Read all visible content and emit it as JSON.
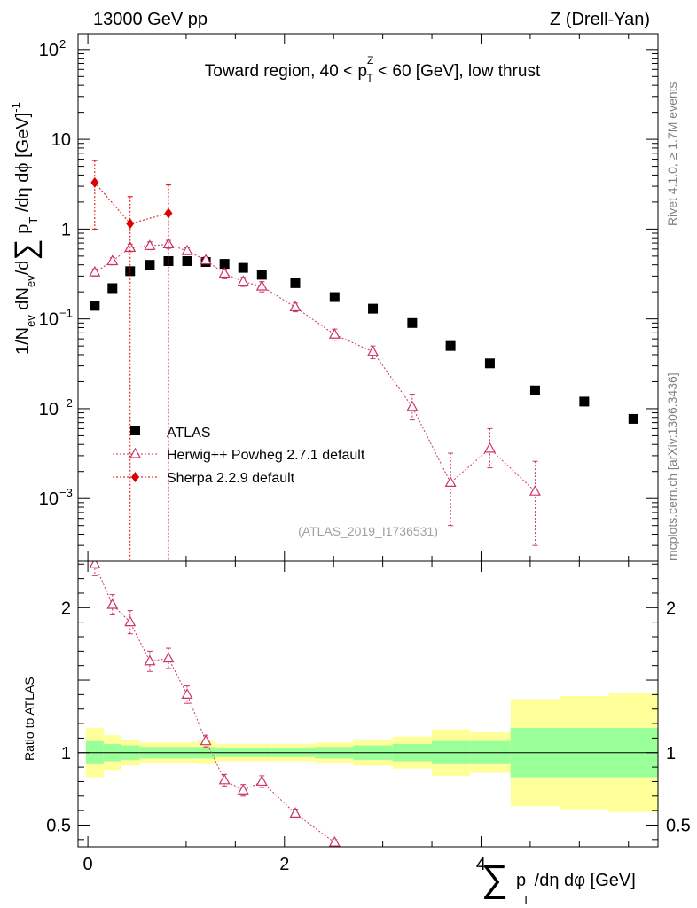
{
  "header": {
    "left": "13000 GeV pp",
    "right": "Z (Drell-Yan)"
  },
  "side_labels": {
    "rivet": "Rivet 4.1.0, ≥ 1.7M events",
    "mcplots": "mcplots.cern.ch [arXiv:1306.3436]"
  },
  "watermark": "(ATLAS_2019_I1736531)",
  "chart_data": [
    {
      "type": "scatter",
      "title": "Toward region, 40 < pTZ < 60 [GeV], low thrust",
      "title_parts": {
        "lead": "Toward region, 40 < p",
        "sup": "Z",
        "sub": "T",
        "tail": " < 60 [GeV], low thrust"
      },
      "ylabel": "1/Nev dNev/d∑pT /dη dφ [GeV]-1",
      "yscale": "log",
      "xlim": [
        -0.1,
        5.8
      ],
      "ylim": [
        0.0002,
        150
      ],
      "yticks": [
        {
          "value": 0.001,
          "base": "10",
          "exp": "−3"
        },
        {
          "value": 0.01,
          "base": "10",
          "exp": "−2"
        },
        {
          "value": 0.1,
          "base": "10",
          "exp": "−1"
        },
        {
          "value": 1,
          "base": "1",
          "exp": ""
        },
        {
          "value": 10,
          "base": "10",
          "exp": ""
        },
        {
          "value": 100,
          "base": "10",
          "exp": "2"
        }
      ],
      "series": [
        {
          "name": "ATLAS",
          "marker": "square",
          "color": "#000000",
          "x": [
            0.07,
            0.25,
            0.43,
            0.63,
            0.82,
            1.01,
            1.2,
            1.39,
            1.58,
            1.77,
            2.11,
            2.51,
            2.9,
            3.3,
            3.69,
            4.09,
            4.55,
            5.05,
            5.55
          ],
          "y": [
            0.14,
            0.22,
            0.34,
            0.4,
            0.44,
            0.44,
            0.43,
            0.41,
            0.37,
            0.31,
            0.25,
            0.175,
            0.13,
            0.09,
            0.05,
            0.032,
            0.016,
            0.012,
            0.0077
          ]
        },
        {
          "name": "Herwig++ Powheg 2.7.1 default",
          "marker": "open-triangle",
          "color": "#cc3366",
          "x": [
            0.07,
            0.25,
            0.43,
            0.63,
            0.82,
            1.01,
            1.2,
            1.39,
            1.58,
            1.77,
            2.11,
            2.51,
            2.9,
            3.3,
            3.69,
            4.09,
            4.55
          ],
          "y": [
            0.33,
            0.44,
            0.62,
            0.65,
            0.68,
            0.57,
            0.45,
            0.32,
            0.26,
            0.23,
            0.135,
            0.067,
            0.043,
            0.0105,
            0.0015,
            0.0036,
            0.0012
          ],
          "err_lo": [
            0.3,
            0.4,
            0.56,
            0.59,
            0.61,
            0.52,
            0.41,
            0.28,
            0.23,
            0.2,
            0.12,
            0.058,
            0.036,
            0.0075,
            0.0005,
            0.0022,
            0.0003
          ],
          "err_hi": [
            0.36,
            0.48,
            0.68,
            0.72,
            0.75,
            0.62,
            0.49,
            0.36,
            0.29,
            0.26,
            0.15,
            0.077,
            0.05,
            0.0145,
            0.0032,
            0.006,
            0.0026
          ]
        },
        {
          "name": "Sherpa 2.2.9 default",
          "marker": "diamond",
          "color": "#dd0000",
          "x": [
            0.07,
            0.43,
            0.82
          ],
          "y": [
            3.3,
            1.15,
            1.5
          ],
          "err_lo": [
            1.0,
            0.0002,
            0.0002
          ],
          "err_hi": [
            5.8,
            2.3,
            3.1
          ]
        }
      ]
    },
    {
      "type": "scatter",
      "title": "",
      "ylabel": "Ratio to ATLAS",
      "xlabel": "∑pT /dη dφ [GeV]",
      "xlabel_parts": {
        "lead": "p",
        "sub": "T",
        "tail": " /dη dφ [GeV]"
      },
      "xlim": [
        -0.1,
        5.8
      ],
      "ylim": [
        0.35,
        2.32
      ],
      "xticks": [
        0,
        2,
        4
      ],
      "yticks": [
        0.5,
        1,
        2
      ],
      "bands": {
        "edges": [
          -0.02,
          0.16,
          0.34,
          0.53,
          0.72,
          0.92,
          1.11,
          1.3,
          1.49,
          1.68,
          1.87,
          2.31,
          2.7,
          3.1,
          3.5,
          3.89,
          4.3,
          4.8,
          5.3,
          5.8
        ],
        "green": [
          [
            0.92,
            1.08
          ],
          [
            0.94,
            1.06
          ],
          [
            0.95,
            1.05
          ],
          [
            0.96,
            1.04
          ],
          [
            0.96,
            1.04
          ],
          [
            0.96,
            1.04
          ],
          [
            0.96,
            1.04
          ],
          [
            0.97,
            1.03
          ],
          [
            0.97,
            1.03
          ],
          [
            0.97,
            1.03
          ],
          [
            0.97,
            1.03
          ],
          [
            0.96,
            1.04
          ],
          [
            0.95,
            1.05
          ],
          [
            0.94,
            1.06
          ],
          [
            0.92,
            1.08
          ],
          [
            0.92,
            1.08
          ],
          [
            0.83,
            1.17
          ],
          [
            0.83,
            1.17
          ],
          [
            0.83,
            1.17
          ]
        ],
        "yellow": [
          [
            0.83,
            1.17
          ],
          [
            0.88,
            1.12
          ],
          [
            0.91,
            1.09
          ],
          [
            0.93,
            1.07
          ],
          [
            0.93,
            1.07
          ],
          [
            0.93,
            1.07
          ],
          [
            0.92,
            1.08
          ],
          [
            0.94,
            1.06
          ],
          [
            0.94,
            1.06
          ],
          [
            0.94,
            1.06
          ],
          [
            0.94,
            1.06
          ],
          [
            0.93,
            1.07
          ],
          [
            0.91,
            1.09
          ],
          [
            0.89,
            1.11
          ],
          [
            0.84,
            1.16
          ],
          [
            0.86,
            1.14
          ],
          [
            0.63,
            1.37
          ],
          [
            0.61,
            1.39
          ],
          [
            0.59,
            1.41
          ]
        ],
        "green_color": "#99ff99",
        "yellow_color": "#ffff99"
      },
      "series": [
        {
          "name": "Herwig++ Powheg 2.7.1 default",
          "marker": "open-triangle",
          "color": "#cc3366",
          "x": [
            0.07,
            0.25,
            0.43,
            0.63,
            0.82,
            1.01,
            1.2,
            1.39,
            1.58,
            1.77,
            2.11,
            2.51
          ],
          "y": [
            2.3,
            2.02,
            1.9,
            1.63,
            1.65,
            1.4,
            1.08,
            0.81,
            0.74,
            0.8,
            0.58,
            0.38
          ],
          "err_lo": [
            2.22,
            1.95,
            1.82,
            1.56,
            1.58,
            1.34,
            1.04,
            0.77,
            0.7,
            0.76,
            0.55,
            0.36
          ],
          "err_hi": [
            2.38,
            2.09,
            1.98,
            1.7,
            1.72,
            1.46,
            1.12,
            0.85,
            0.78,
            0.84,
            0.61,
            0.4
          ]
        }
      ]
    }
  ]
}
